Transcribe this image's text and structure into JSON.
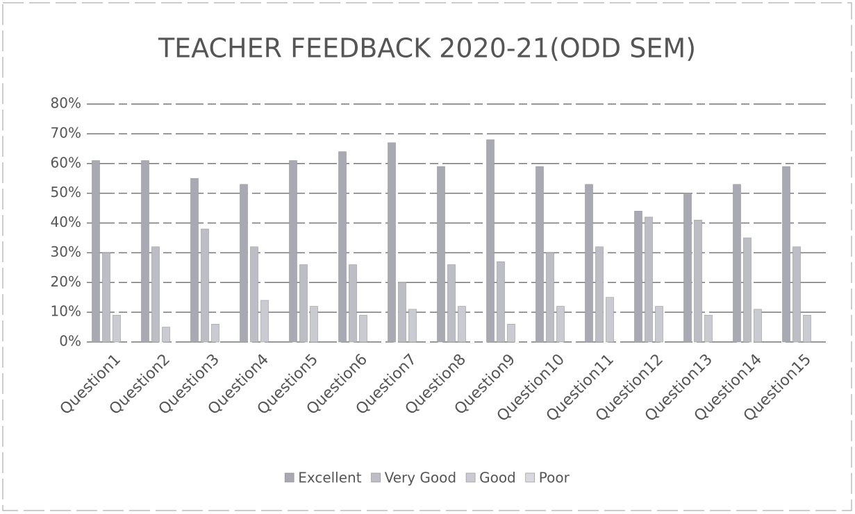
{
  "chart_data": {
    "type": "bar",
    "title": "TEACHER FEEDBACK 2020-21(ODD SEM)",
    "categories": [
      "Question1",
      "Question2",
      "Question3",
      "Question4",
      "Question5",
      "Question6",
      "Question7",
      "Question8",
      "Question9",
      "Question10",
      "Question11",
      "Question12",
      "Question13",
      "Question14",
      "Question15"
    ],
    "series": [
      {
        "name": "Excellent",
        "color": "#a9a9b3",
        "values": [
          61,
          61,
          55,
          53,
          61,
          64,
          67,
          59,
          68,
          59,
          53,
          44,
          50,
          53,
          59
        ]
      },
      {
        "name": "Very Good",
        "color": "#bdbdc6",
        "values": [
          30,
          32,
          38,
          32,
          26,
          26,
          20,
          26,
          27,
          30,
          32,
          42,
          41,
          35,
          32
        ]
      },
      {
        "name": "Good",
        "color": "#cacad2",
        "values": [
          9,
          5,
          6,
          14,
          12,
          9,
          11,
          12,
          6,
          12,
          15,
          12,
          9,
          11,
          9
        ]
      },
      {
        "name": "Poor",
        "color": "#d8d8de",
        "values": [
          0,
          0,
          0,
          0,
          0,
          0,
          0,
          0,
          0,
          0,
          0,
          0,
          0,
          0,
          0
        ]
      }
    ],
    "ylim": [
      0,
      80
    ],
    "yticks": [
      {
        "value": 0,
        "label": "0%"
      },
      {
        "value": 10,
        "label": "10%"
      },
      {
        "value": 20,
        "label": "20%"
      },
      {
        "value": 30,
        "label": "30%"
      },
      {
        "value": 40,
        "label": "40%"
      },
      {
        "value": 50,
        "label": "50%"
      },
      {
        "value": 60,
        "label": "60%"
      },
      {
        "value": 70,
        "label": "70%"
      },
      {
        "value": 80,
        "label": "80%"
      }
    ],
    "grid": true,
    "legend": "bottom"
  }
}
